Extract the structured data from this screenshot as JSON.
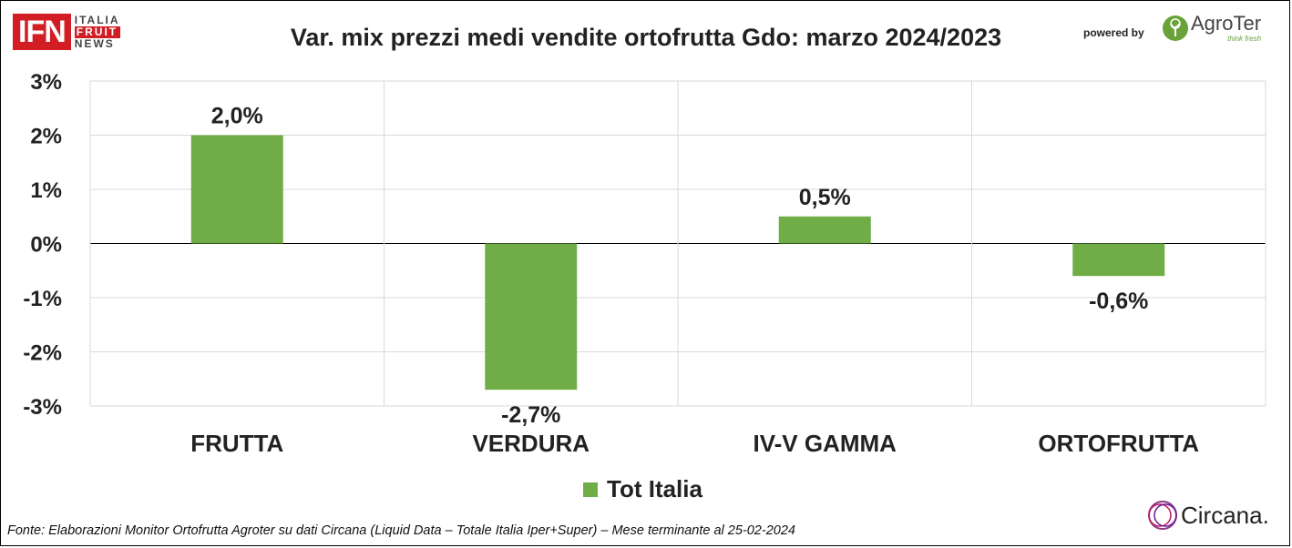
{
  "header": {
    "title": "Var. mix prezzi medi vendite ortofrutta Gdo: marzo 2024/2023",
    "ifn_logo_text": "IFN",
    "ifn_words": [
      "ITALIA",
      "FRUIT",
      "NEWS"
    ],
    "powered_by": "powered by",
    "agroter_name": "AgroTer",
    "agroter_tagline": "think fresh"
  },
  "footer": {
    "source": "Fonte: Elaborazioni Monitor Ortofrutta Agroter su dati Circana (Liquid Data – Totale Italia Iper+Super) – Mese terminante al 25-02-2024",
    "circana_name": "Circana."
  },
  "colors": {
    "bar": "#70ad47",
    "grid": "#d9d9d9",
    "axis": "#000000",
    "ifn_red": "#d21d24"
  },
  "chart_data": {
    "type": "bar",
    "title": "Var. mix prezzi medi vendite ortofrutta Gdo: marzo 2024/2023",
    "categories": [
      "FRUTTA",
      "VERDURA",
      "IV-V GAMMA",
      "ORTOFRUTTA"
    ],
    "series": [
      {
        "name": "Tot Italia",
        "values": [
          2.0,
          -2.7,
          0.5,
          -0.6
        ],
        "labels": [
          "2,0%",
          "-2,7%",
          "0,5%",
          "-0,6%"
        ]
      }
    ],
    "ylim": [
      -3,
      3
    ],
    "yticks": [
      3,
      2,
      1,
      0,
      -1,
      -2,
      -3
    ],
    "ytick_labels": [
      "3%",
      "2%",
      "1%",
      "0%",
      "-1%",
      "-2%",
      "-3%"
    ],
    "xlabel": "",
    "ylabel": "",
    "grid": true,
    "legend_position": "bottom"
  }
}
